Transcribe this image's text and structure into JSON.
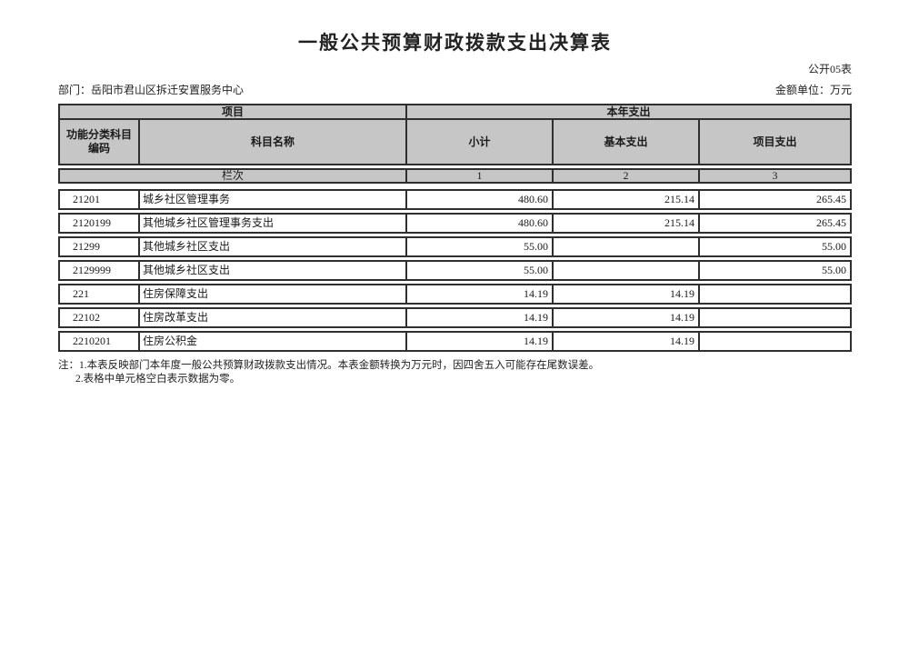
{
  "page": {
    "title": "一般公共预算财政拨款支出决算表",
    "form_number": "公开05表",
    "department": "部门：岳阳市君山区拆迁安置服务中心",
    "unit": "金额单位：万元"
  },
  "table": {
    "header": {
      "group_item": "项目",
      "group_year_expense": "本年支出",
      "col_function_code": "功能分类科目编码",
      "col_subject_name": "科目名称",
      "col_subtotal": "小计",
      "col_basic_expense": "基本支出",
      "col_project_expense": "项目支出",
      "lanci_label": "栏次",
      "lanci_cols": [
        "1",
        "2",
        "3"
      ]
    },
    "rows": [
      {
        "code": "21201",
        "name": "城乡社区管理事务",
        "subtotal": "480.60",
        "basic": "215.14",
        "project": "265.45"
      },
      {
        "code": "2120199",
        "name": "其他城乡社区管理事务支出",
        "subtotal": "480.60",
        "basic": "215.14",
        "project": "265.45"
      },
      {
        "code": "21299",
        "name": "其他城乡社区支出",
        "subtotal": "55.00",
        "basic": "",
        "project": "55.00"
      },
      {
        "code": "2129999",
        "name": "其他城乡社区支出",
        "subtotal": "55.00",
        "basic": "",
        "project": "55.00"
      },
      {
        "code": "221",
        "name": "住房保障支出",
        "subtotal": "14.19",
        "basic": "14.19",
        "project": ""
      },
      {
        "code": "22102",
        "name": "住房改革支出",
        "subtotal": "14.19",
        "basic": "14.19",
        "project": ""
      },
      {
        "code": "2210201",
        "name": "住房公积金",
        "subtotal": "14.19",
        "basic": "14.19",
        "project": ""
      }
    ]
  },
  "notes": {
    "line1": "注：1.本表反映部门本年度一般公共预算财政拨款支出情况。本表金额转换为万元时，因四舍五入可能存在尾数误差。",
    "line2": "2.表格中单元格空白表示数据为零。"
  },
  "colors": {
    "header_bg": "#c6c6c6",
    "border": "#2f2f2f",
    "page_bg": "#ffffff"
  }
}
